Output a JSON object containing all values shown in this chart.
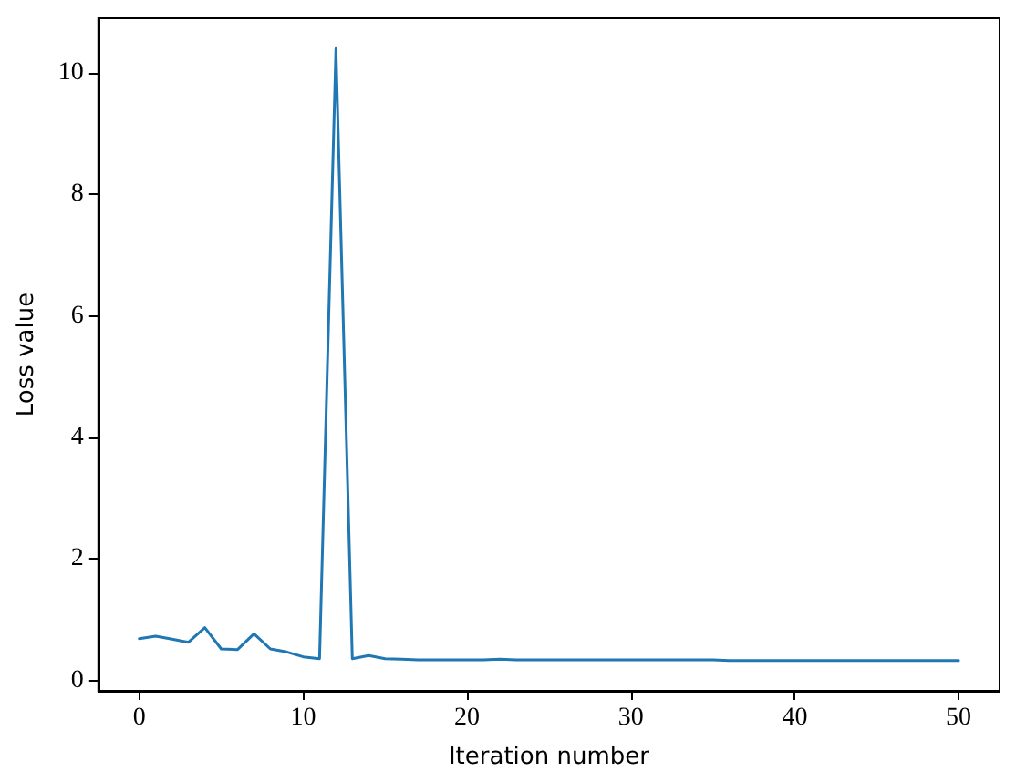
{
  "chart_data": {
    "type": "line",
    "xlabel": "Iteration number",
    "ylabel": "Loss value",
    "x": [
      0,
      1,
      2,
      3,
      4,
      5,
      6,
      7,
      8,
      9,
      10,
      11,
      12,
      13,
      14,
      15,
      16,
      17,
      18,
      19,
      20,
      21,
      22,
      23,
      24,
      25,
      26,
      27,
      28,
      29,
      30,
      31,
      32,
      33,
      34,
      35,
      36,
      37,
      38,
      39,
      40,
      41,
      42,
      43,
      44,
      45,
      46,
      47,
      48,
      49,
      50
    ],
    "series": [
      {
        "color": "#1f77b4",
        "values": [
          0.69,
          0.73,
          0.68,
          0.63,
          0.87,
          0.52,
          0.51,
          0.77,
          0.52,
          0.47,
          0.39,
          0.36,
          10.4,
          0.36,
          0.41,
          0.36,
          0.35,
          0.34,
          0.34,
          0.34,
          0.34,
          0.34,
          0.35,
          0.34,
          0.34,
          0.34,
          0.34,
          0.34,
          0.34,
          0.34,
          0.34,
          0.34,
          0.34,
          0.34,
          0.34,
          0.34,
          0.33,
          0.33,
          0.33,
          0.33,
          0.33,
          0.33,
          0.33,
          0.33,
          0.33,
          0.33,
          0.33,
          0.33,
          0.33,
          0.33,
          0.33
        ]
      }
    ],
    "xlim": [
      -2.5,
      52.5
    ],
    "xticks": [
      0,
      10,
      20,
      30,
      40,
      50
    ],
    "ylim": [
      -0.17,
      10.9
    ],
    "yticks": [
      0,
      2,
      4,
      6,
      8,
      10
    ],
    "grid": false,
    "marker": "none",
    "line_style": "solid"
  }
}
